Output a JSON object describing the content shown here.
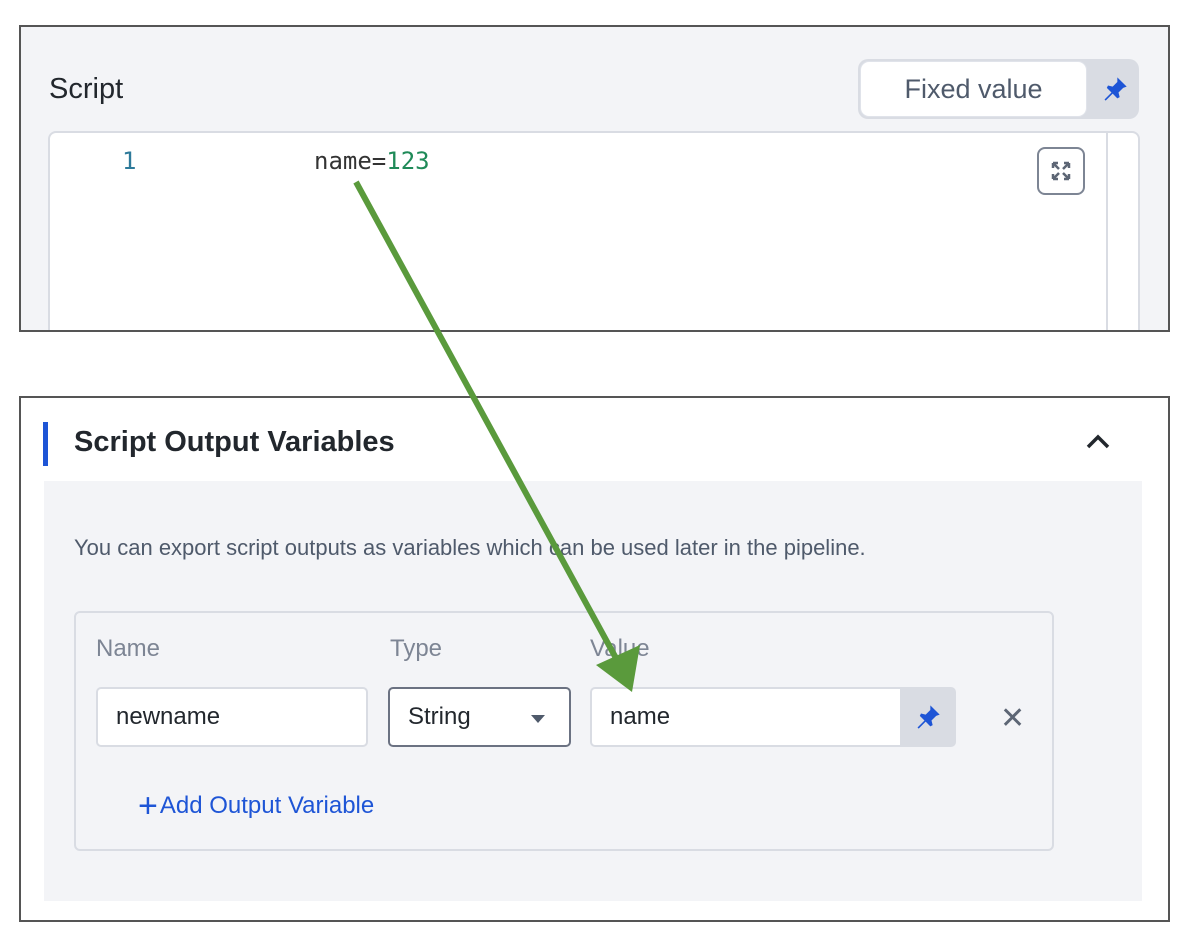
{
  "script": {
    "label": "Script",
    "mode_button": "Fixed value",
    "editor": {
      "line_number": "1",
      "code_key": "name=",
      "code_value": "123"
    }
  },
  "output_variables": {
    "title": "Script Output Variables",
    "description": "You can export script outputs as variables which can be used later in the pipeline.",
    "columns": {
      "name": "Name",
      "type": "Type",
      "value": "Value"
    },
    "row": {
      "name": "newname",
      "type": "String",
      "value": "name"
    },
    "add_button": "Add Output Variable"
  },
  "colors": {
    "accent": "#1e55d6",
    "annotation_arrow": "#5a9a3c"
  },
  "icons": [
    "pin-icon",
    "expand-icon",
    "chevron-up-icon",
    "close-icon",
    "plus-icon",
    "caret-down-icon"
  ]
}
